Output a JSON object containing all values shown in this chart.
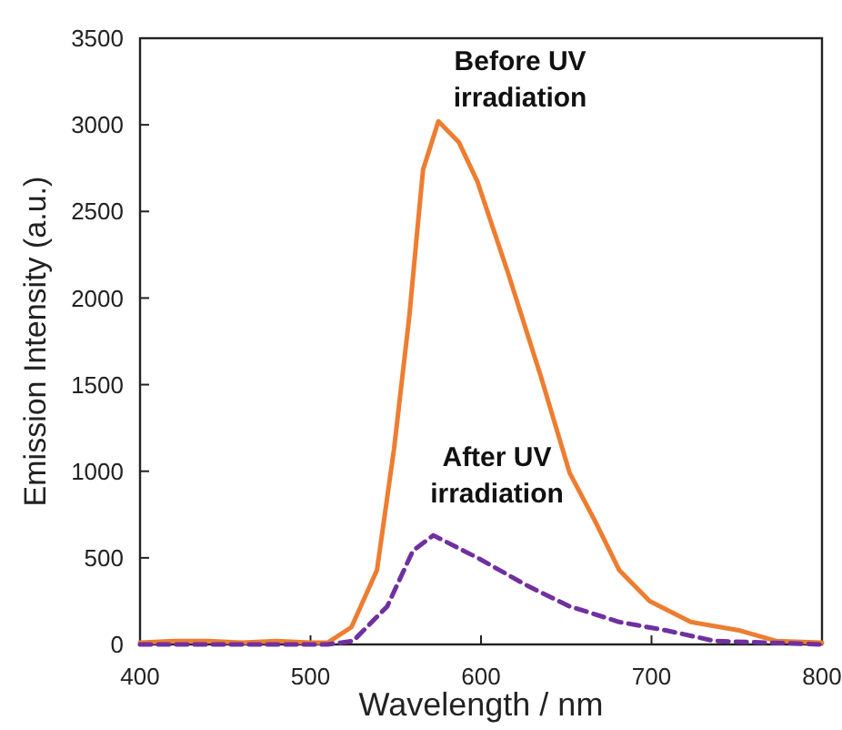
{
  "chart_data": {
    "type": "line",
    "xlabel": "Wavelength / nm",
    "ylabel": "Emission Intensity (a.u.)",
    "xlim": [
      400,
      800
    ],
    "xticks": [
      400,
      500,
      600,
      700,
      800
    ],
    "ylim": [
      0,
      3500
    ],
    "yticks": [
      0,
      500,
      1000,
      1500,
      2000,
      2500,
      3000,
      3500
    ],
    "grid": false,
    "series": [
      {
        "color": "#ed7d31",
        "line_style": "solid",
        "x": [
          400,
          420,
          440,
          460,
          480,
          500,
          510,
          524,
          539,
          549,
          558,
          563,
          566,
          575,
          587,
          598,
          616,
          635,
          652,
          667,
          681,
          699,
          723,
          752,
          773,
          800
        ],
        "values": [
          10,
          20,
          20,
          10,
          20,
          10,
          10,
          100,
          430,
          1130,
          1900,
          2430,
          2740,
          3020,
          2900,
          2670,
          2140,
          1550,
          990,
          710,
          430,
          250,
          130,
          80,
          20,
          10
        ]
      },
      {
        "color": "#7030a0",
        "line_style": "dashed",
        "x": [
          400,
          450,
          500,
          510,
          525,
          545,
          560,
          572,
          598,
          627,
          652,
          681,
          709,
          737,
          770,
          800
        ],
        "values": [
          0,
          0,
          0,
          0,
          20,
          220,
          540,
          630,
          500,
          340,
          220,
          130,
          80,
          20,
          10,
          0
        ]
      }
    ],
    "annotations": [
      "Before UV irradiation",
      "After UV irradiation"
    ]
  }
}
